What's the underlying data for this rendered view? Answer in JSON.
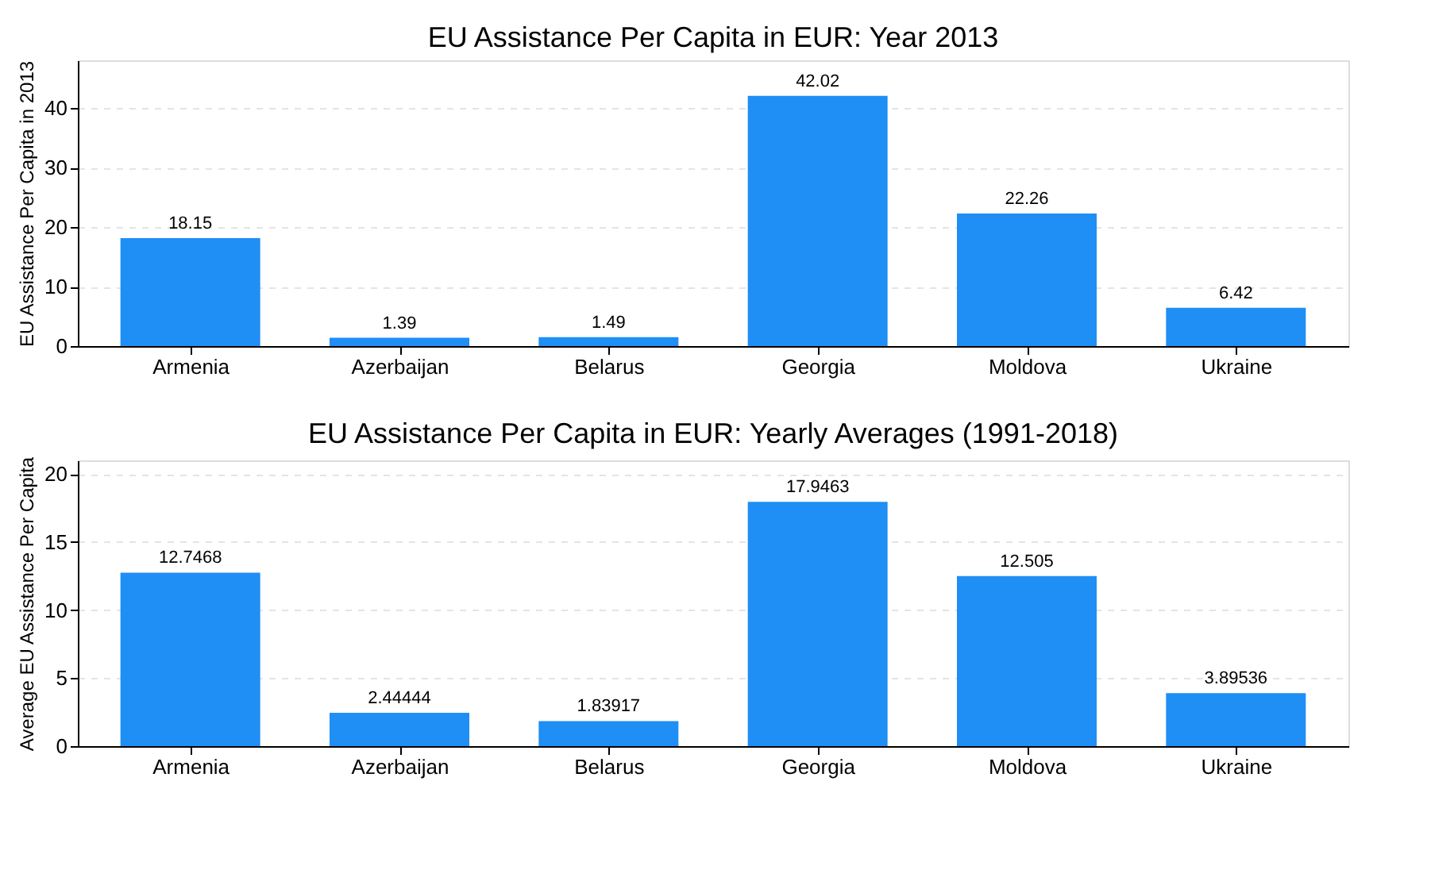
{
  "chart_data": [
    {
      "type": "bar",
      "title": "EU Assistance Per Capita in EUR: Year 2013",
      "ylabel": "EU Assistance Per Capita in 2013",
      "categories": [
        "Armenia",
        "Azerbaijan",
        "Belarus",
        "Georgia",
        "Moldova",
        "Ukraine"
      ],
      "values": [
        18.15,
        1.39,
        1.49,
        42.02,
        22.26,
        6.42
      ],
      "color": "#1f8ef5",
      "ylim": [
        0,
        48
      ],
      "yticks": [
        0,
        10,
        20,
        30,
        40
      ],
      "grid": "y",
      "data_labels": true
    },
    {
      "type": "bar",
      "title": "EU Assistance Per Capita in EUR: Yearly Averages (1991-2018)",
      "ylabel": "Average EU Assistance Per Capita",
      "categories": [
        "Armenia",
        "Azerbaijan",
        "Belarus",
        "Georgia",
        "Moldova",
        "Ukraine"
      ],
      "values": [
        12.7468,
        2.44444,
        1.83917,
        17.9463,
        12.505,
        3.89536
      ],
      "color": "#1f8ef5",
      "ylim": [
        0,
        21
      ],
      "yticks": [
        0,
        5,
        10,
        15,
        20
      ],
      "grid": "y",
      "data_labels": true
    }
  ]
}
